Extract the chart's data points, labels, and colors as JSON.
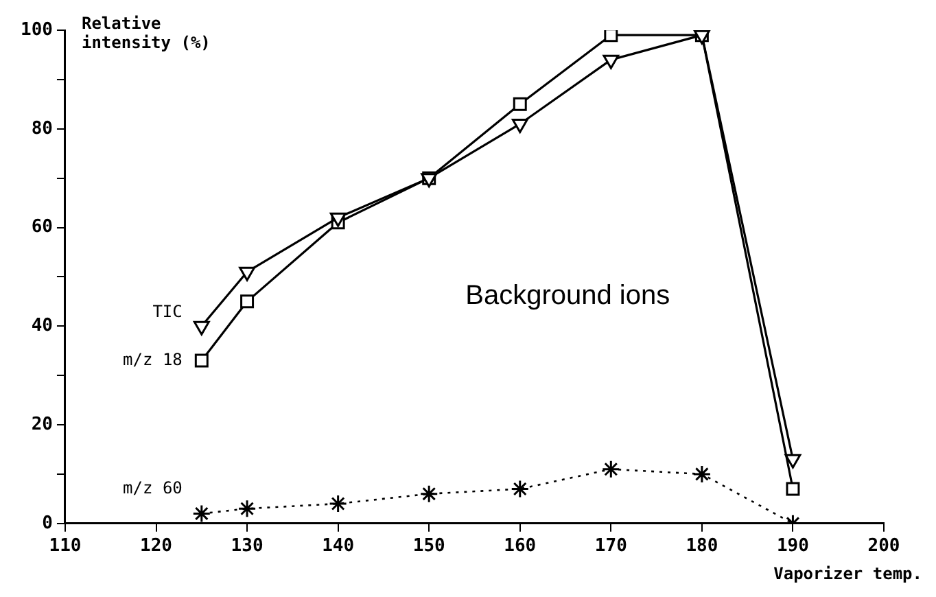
{
  "chart_data": {
    "type": "line",
    "xlabel": "Vaporizer temp.",
    "ylabel": "Relative intensity (%)",
    "annotations": [
      "Background ions"
    ],
    "x": [
      125,
      130,
      140,
      150,
      160,
      170,
      180,
      190
    ],
    "series": [
      {
        "name": "TIC",
        "color": "#000000",
        "marker": "triangle",
        "line_style": "solid",
        "values": [
          40,
          51,
          62,
          70,
          81,
          94,
          99,
          13
        ]
      },
      {
        "name": "m/z 18",
        "color": "#000000",
        "marker": "square",
        "line_style": "solid",
        "values": [
          33,
          45,
          61,
          70,
          85,
          99,
          99,
          7
        ]
      },
      {
        "name": "m/z 60",
        "color": "#000000",
        "marker": "cross",
        "line_style": "dotted",
        "values": [
          2,
          3,
          4,
          6,
          7,
          11,
          10,
          0
        ]
      }
    ],
    "xlim": [
      110,
      200
    ],
    "xticks": [
      110,
      120,
      130,
      140,
      150,
      160,
      170,
      180,
      190,
      200
    ],
    "ylim": [
      0,
      100
    ],
    "yticks": [
      0,
      {
        "value": 10,
        "label": null
      },
      20,
      {
        "value": 30,
        "label": null
      },
      40,
      {
        "value": 50,
        "label": null
      },
      60,
      {
        "value": 70,
        "label": null
      },
      80,
      {
        "value": 90,
        "label": null
      },
      100
    ],
    "grid": false,
    "legend": false
  }
}
